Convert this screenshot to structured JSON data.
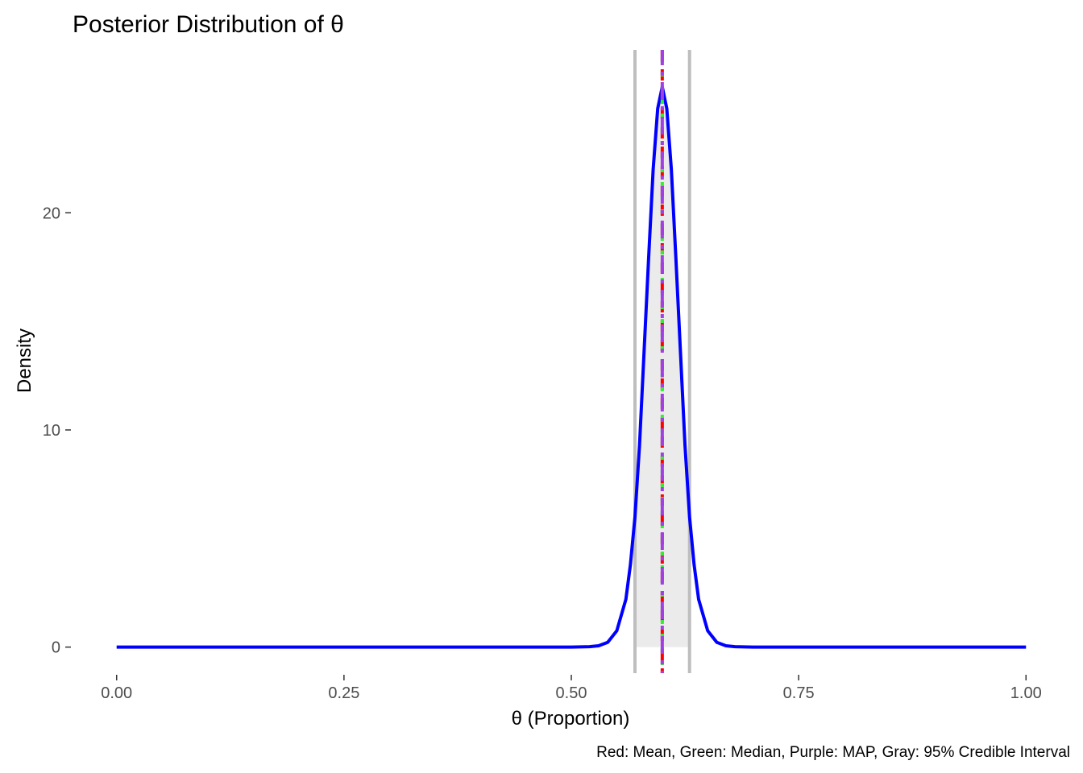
{
  "chart_data": {
    "type": "line",
    "title": "Posterior Distribution of θ",
    "xlabel": "θ (Proportion)",
    "ylabel": "Density",
    "caption": "Red: Mean, Green: Median, Purple: MAP, Gray: 95% Credible Interval",
    "xlim": [
      0,
      1
    ],
    "ylim": [
      -1.2,
      27.5
    ],
    "x_ticks": [
      0,
      0.25,
      0.5,
      0.75,
      1
    ],
    "x_tick_labels": [
      "0.00",
      "0.25",
      "0.50",
      "0.75",
      "1.00"
    ],
    "y_ticks": [
      0,
      10,
      20
    ],
    "y_tick_labels": [
      "0",
      "10",
      "20"
    ],
    "grid": false,
    "series": [
      {
        "name": "Posterior density",
        "color": "#0000ff",
        "x": [
          0,
          0.1,
          0.2,
          0.3,
          0.4,
          0.5,
          0.52,
          0.53,
          0.54,
          0.55,
          0.56,
          0.565,
          0.57,
          0.575,
          0.58,
          0.585,
          0.59,
          0.595,
          0.6,
          0.605,
          0.61,
          0.615,
          0.62,
          0.625,
          0.63,
          0.635,
          0.64,
          0.65,
          0.66,
          0.67,
          0.68,
          0.7,
          0.8,
          0.9,
          1.0
        ],
        "y": [
          0,
          0,
          0,
          0,
          0,
          0,
          0.02,
          0.06,
          0.22,
          0.75,
          2.2,
          3.8,
          6.0,
          9.3,
          13.6,
          17.9,
          22.0,
          24.8,
          25.8,
          24.8,
          22.0,
          17.9,
          13.6,
          9.3,
          6.0,
          3.8,
          2.2,
          0.75,
          0.22,
          0.06,
          0.02,
          0,
          0,
          0,
          0
        ]
      }
    ],
    "credible_interval": {
      "label": "95% Credible Interval",
      "lower": 0.57,
      "upper": 0.63,
      "color": "#bebebe",
      "fill": "#ebebeb"
    },
    "reference_lines": [
      {
        "name": "Mean",
        "x": 0.6,
        "color": "#ff0000",
        "style": "dashed"
      },
      {
        "name": "Median",
        "x": 0.6,
        "color": "#33ee33",
        "style": "dotted"
      },
      {
        "name": "MAP",
        "x": 0.6,
        "color": "#a040e0",
        "style": "dashdot"
      }
    ]
  }
}
